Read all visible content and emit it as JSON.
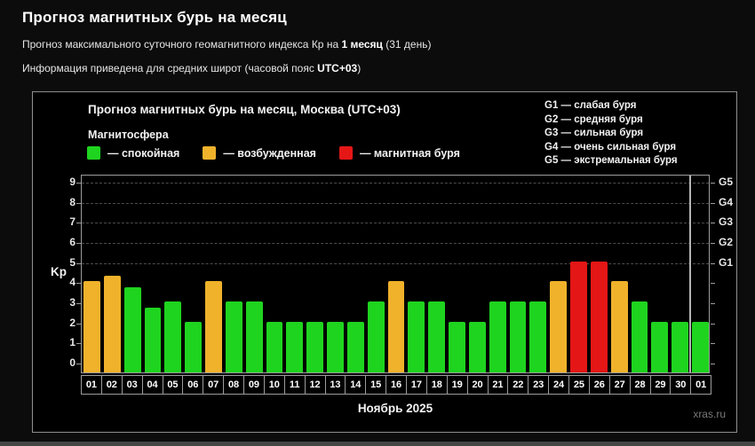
{
  "page": {
    "title": "Прогноз магнитных бурь на месяц",
    "subtitle": {
      "prefix": "Прогноз максимального суточного геомагнитного индекса Кр на ",
      "bold": "1 месяц",
      "suffix": " (31 день)"
    },
    "note": {
      "prefix": "Информация приведена для средних широт (часовой пояс ",
      "bold": "UTC+03",
      "suffix": ")"
    },
    "watermark": "xras.ru"
  },
  "chart": {
    "title": "Прогноз магнитных бурь на месяц, Москва (UTC+03)",
    "legend_title": "Магнитосфера",
    "legend": [
      {
        "name": "quiet",
        "label": "— спокойная",
        "color": "#1fd41f"
      },
      {
        "name": "active",
        "label": "— возбужденная",
        "color": "#f0b22b"
      },
      {
        "name": "storm",
        "label": "— магнитная буря",
        "color": "#e41616"
      }
    ],
    "storm_scale": [
      "G1 — слабая буря",
      "G2 — средняя буря",
      "G3 — сильная буря",
      "G4 — очень сильная буря",
      "G5 — экстремальная буря"
    ],
    "ylabel": "Kp",
    "xlabel": "Ноябрь 2025"
  },
  "chart_data": {
    "type": "bar",
    "title": "Прогноз магнитных бурь на месяц, Москва (UTC+03)",
    "categories": [
      "01",
      "02",
      "03",
      "04",
      "05",
      "06",
      "07",
      "08",
      "09",
      "10",
      "11",
      "12",
      "13",
      "14",
      "15",
      "16",
      "17",
      "18",
      "19",
      "20",
      "21",
      "22",
      "23",
      "24",
      "25",
      "26",
      "27",
      "28",
      "29",
      "30",
      "01"
    ],
    "values": [
      4,
      4.3,
      3.7,
      2.7,
      3,
      2,
      4,
      3,
      3,
      2,
      2,
      2,
      2,
      2,
      3,
      4,
      3,
      3,
      2,
      2,
      3,
      3,
      3,
      4,
      5,
      5,
      4,
      3,
      2,
      2,
      2
    ],
    "xlabel": "Ноябрь 2025",
    "ylabel": "Kp",
    "ylim": [
      0,
      9.4
    ],
    "yticks": [
      0,
      1,
      2,
      3,
      4,
      5,
      6,
      7,
      8,
      9
    ],
    "grid_levels": [
      5,
      6,
      7,
      8,
      9
    ],
    "right_axis_labels": {
      "5": "G1",
      "6": "G2",
      "7": "G3",
      "8": "G4",
      "9": "G5"
    },
    "color_rules": {
      "storm_from_kp": 5,
      "active_from_kp": 4,
      "quiet_below_kp": 4
    },
    "colors": {
      "quiet": "#1fd41f",
      "active": "#f0b22b",
      "storm": "#e41616"
    },
    "month_separator_before_index": 30,
    "legend_position": "top-left",
    "grid": "dashed horizontal at G-levels only"
  }
}
